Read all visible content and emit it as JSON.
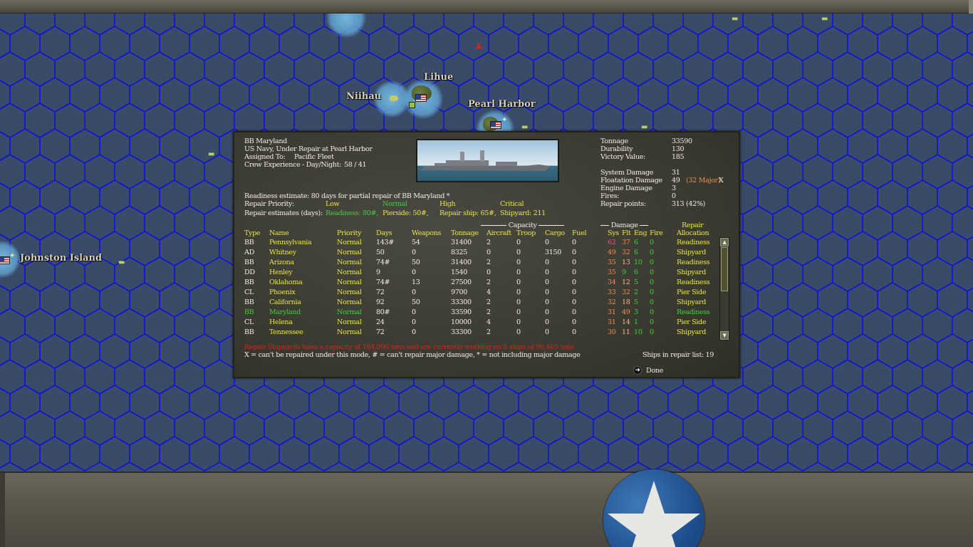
{
  "map": {
    "labels": {
      "lihue": "Lihue",
      "niihau": "Niihau",
      "pearl_harbor": "Pearl Harbor",
      "johnston_island": "Johnston Island"
    }
  },
  "dialog": {
    "ship_title": "BB Maryland",
    "status_line": "US Navy, Under Repair at Pearl Harbor",
    "assigned_label": "Assigned To:",
    "assigned_value": "Pacific Fleet",
    "crew_label": "Crew Experience - Day/Night:",
    "crew_value": "58  /  41",
    "stats": {
      "tonnage_label": "Tonnage",
      "tonnage_value": "33590",
      "durability_label": "Durability",
      "durability_value": "130",
      "victory_label": "Victory Value:",
      "victory_value": "185",
      "system_label": "System Damage",
      "system_value": "31",
      "floatation_label": "Floatation Damage",
      "floatation_value": "49",
      "floatation_major": "(32 Major)",
      "floatation_flag": "X",
      "engine_label": "Engine Damage",
      "engine_value": "3",
      "fires_label": "Fires:",
      "fires_value": "0",
      "repair_points_label": "Repair points:",
      "repair_points_value": "313 (42%)"
    },
    "readiness_estimate": "Readiness estimate: 80 days for partial repair of BB Maryland  *",
    "priority_label": "Repair Priority:",
    "priorities": [
      "Low",
      "Normal",
      "High",
      "Critical"
    ],
    "estimates_label": "Repair estimates (days):",
    "estimates": [
      "Readiness: 80#,",
      "Pierside: 50#,",
      "Repair ship: 65#,",
      "Shipyard: 211"
    ],
    "capacity_group": "Capacity",
    "damage_group": "Damage",
    "repair_group": "Repair",
    "columns": [
      "Type",
      "Name",
      "Priority",
      "Days",
      "Weapons",
      "Tonnage",
      "Aircraft",
      "Troop",
      "Cargo",
      "Fuel",
      "Sys",
      "Flt",
      "Eng",
      "Fire",
      "Allocation"
    ],
    "rows": [
      {
        "type": "BB",
        "name": "Pennsylvania",
        "priority": "Normal",
        "days": "143#",
        "weapons": "54",
        "tonnage": "31400",
        "aircraft": "2",
        "troop": "0",
        "cargo": "0",
        "fuel": "0",
        "sys": "62",
        "flt": "37",
        "eng": "6",
        "fire": "0",
        "allocation": "Readiness",
        "selected": false
      },
      {
        "type": "AD",
        "name": "Whitney",
        "priority": "Normal",
        "days": "50",
        "weapons": "0",
        "tonnage": "8325",
        "aircraft": "0",
        "troop": "0",
        "cargo": "3150",
        "fuel": "0",
        "sys": "49",
        "flt": "32",
        "eng": "6",
        "fire": "0",
        "allocation": "Shipyard",
        "selected": false
      },
      {
        "type": "BB",
        "name": "Arizona",
        "priority": "Normal",
        "days": "74#",
        "weapons": "50",
        "tonnage": "31400",
        "aircraft": "2",
        "troop": "0",
        "cargo": "0",
        "fuel": "0",
        "sys": "35",
        "flt": "13",
        "eng": "10",
        "fire": "0",
        "allocation": "Readiness",
        "selected": false
      },
      {
        "type": "DD",
        "name": "Henley",
        "priority": "Normal",
        "days": "9",
        "weapons": "0",
        "tonnage": "1540",
        "aircraft": "0",
        "troop": "0",
        "cargo": "0",
        "fuel": "0",
        "sys": "35",
        "flt": "9",
        "eng": "6",
        "fire": "0",
        "allocation": "Shipyard",
        "selected": false
      },
      {
        "type": "BB",
        "name": "Oklahoma",
        "priority": "Normal",
        "days": "74#",
        "weapons": "13",
        "tonnage": "27500",
        "aircraft": "2",
        "troop": "0",
        "cargo": "0",
        "fuel": "0",
        "sys": "34",
        "flt": "12",
        "eng": "5",
        "fire": "0",
        "allocation": "Readiness",
        "selected": false
      },
      {
        "type": "CL",
        "name": "Phoenix",
        "priority": "Normal",
        "days": "72",
        "weapons": "0",
        "tonnage": "9700",
        "aircraft": "4",
        "troop": "0",
        "cargo": "0",
        "fuel": "0",
        "sys": "33",
        "flt": "32",
        "eng": "2",
        "fire": "0",
        "allocation": "Pier Side",
        "selected": false
      },
      {
        "type": "BB",
        "name": "California",
        "priority": "Normal",
        "days": "92",
        "weapons": "50",
        "tonnage": "33300",
        "aircraft": "2",
        "troop": "0",
        "cargo": "0",
        "fuel": "0",
        "sys": "32",
        "flt": "18",
        "eng": "5",
        "fire": "0",
        "allocation": "Shipyard",
        "selected": false
      },
      {
        "type": "BB",
        "name": "Maryland",
        "priority": "Normal",
        "days": "80#",
        "weapons": "0",
        "tonnage": "33590",
        "aircraft": "2",
        "troop": "0",
        "cargo": "0",
        "fuel": "0",
        "sys": "31",
        "flt": "49",
        "eng": "3",
        "fire": "0",
        "allocation": "Readiness",
        "selected": true
      },
      {
        "type": "CL",
        "name": "Helena",
        "priority": "Normal",
        "days": "24",
        "weapons": "0",
        "tonnage": "10000",
        "aircraft": "4",
        "troop": "0",
        "cargo": "0",
        "fuel": "0",
        "sys": "31",
        "flt": "14",
        "eng": "1",
        "fire": "0",
        "allocation": "Pier Side",
        "selected": false
      },
      {
        "type": "BB",
        "name": "Tennessee",
        "priority": "Normal",
        "days": "72",
        "weapons": "0",
        "tonnage": "33300",
        "aircraft": "2",
        "troop": "0",
        "cargo": "0",
        "fuel": "0",
        "sys": "30",
        "flt": "11",
        "eng": "10",
        "fire": "0",
        "allocation": "Shipyard",
        "selected": false
      }
    ],
    "shipyard_note": "Repair Shipyards have a capacity of 184,000 tons and are currently working on 5 ships of 96,465 tons",
    "legend": "X = can't be repaired under this mode, # = can't repair major damage, * = not including major damage",
    "ships_in_list": "Ships in repair list: 19",
    "done_label": "Done",
    "colors": {
      "header_yellow": "#e8e54a",
      "selected_green": "#3ad33a",
      "damage_orange": "#f08a50",
      "damage_pink": "#e25678",
      "warning_red": "#d8221f"
    }
  }
}
